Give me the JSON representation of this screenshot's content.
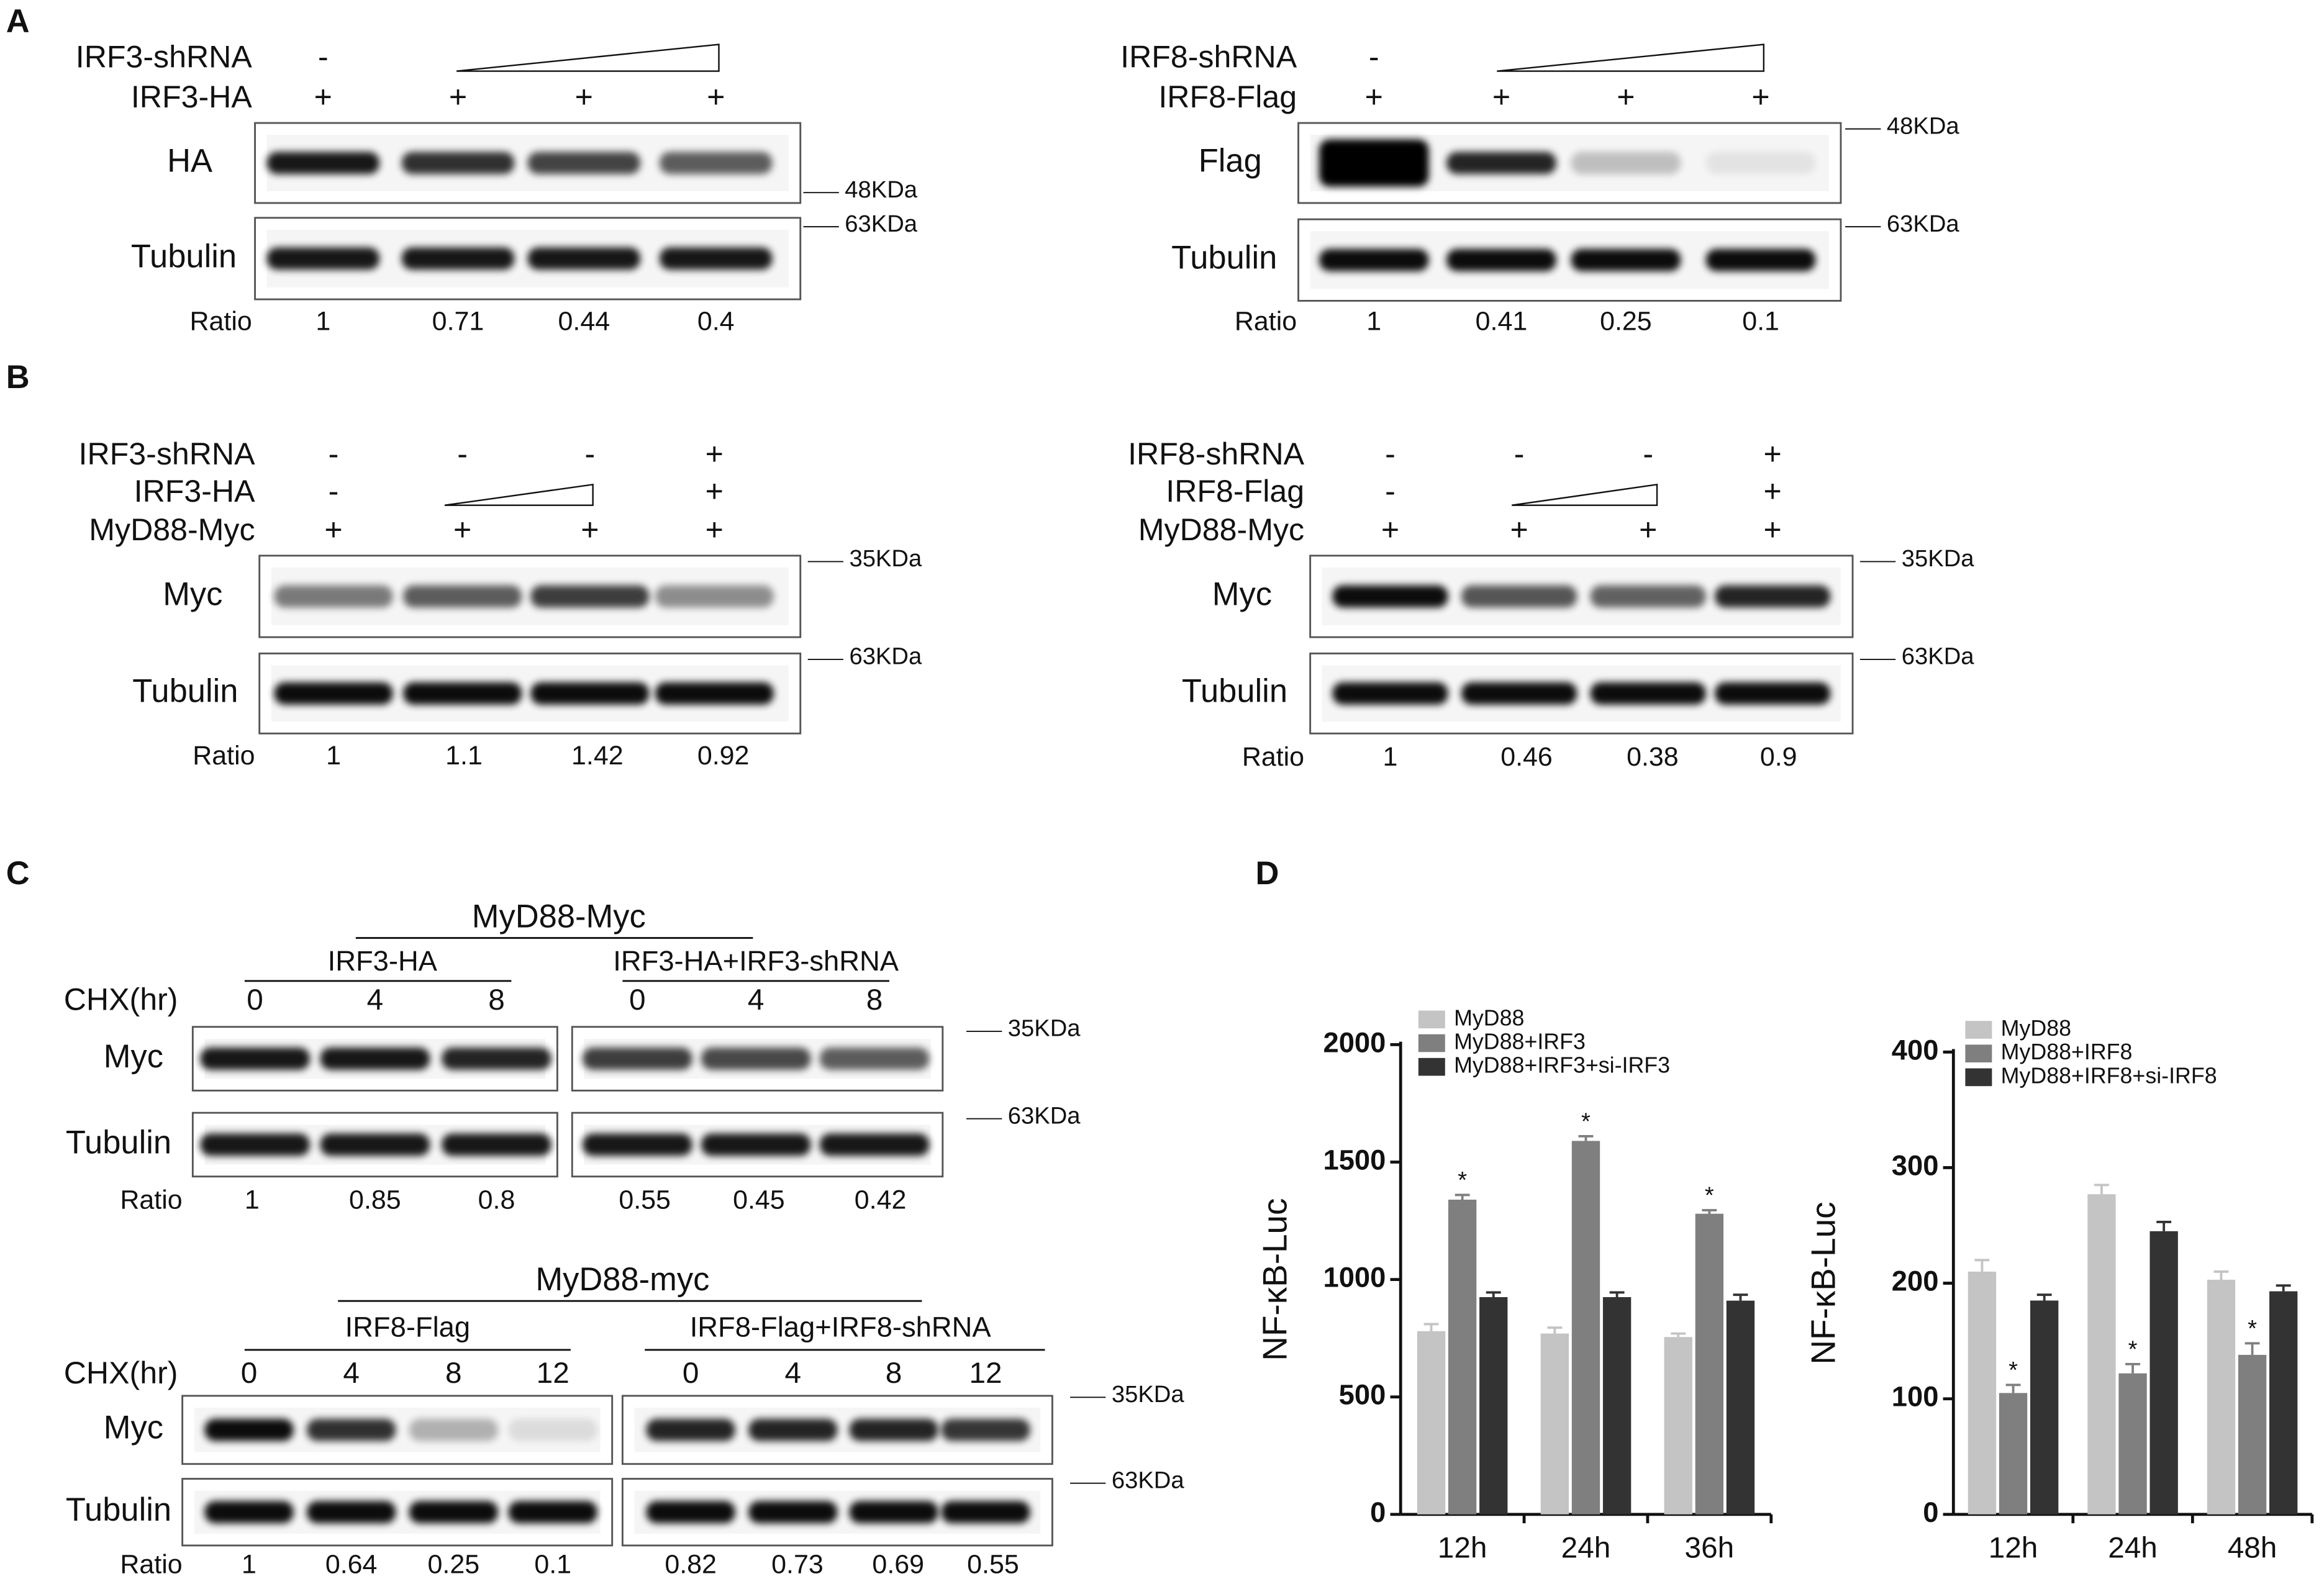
{
  "panel_a": {
    "label": "A",
    "blots": [
      {
        "rows": [
          {
            "label": "IRF3-shRNA",
            "cells": [
              "-"
            ]
          },
          {
            "label": "IRF3-HA",
            "cells": [
              "+",
              "+",
              "+",
              "+"
            ]
          }
        ],
        "gels": [
          {
            "label": "HA",
            "marker": "48KDa"
          },
          {
            "label": "Tubulin",
            "marker": "63KDa"
          }
        ],
        "ratio_label": "Ratio",
        "ratios": [
          "1",
          "0.71",
          "0.44",
          "0.4"
        ]
      },
      {
        "rows": [
          {
            "label": "IRF8-shRNA",
            "cells": [
              "-"
            ]
          },
          {
            "label": "IRF8-Flag",
            "cells": [
              "+",
              "+",
              "+",
              "+"
            ]
          }
        ],
        "gels": [
          {
            "label": "Flag",
            "marker": "48KDa"
          },
          {
            "label": "Tubulin",
            "marker": "63KDa"
          }
        ],
        "ratio_label": "Ratio",
        "ratios": [
          "1",
          "0.41",
          "0.25",
          "0.1"
        ]
      }
    ]
  },
  "panel_b": {
    "label": "B",
    "blots": [
      {
        "rows": [
          {
            "label": "IRF3-shRNA",
            "cells": [
              "-",
              "-",
              "-",
              "+"
            ]
          },
          {
            "label": "IRF3-HA",
            "cells": [
              "-",
              "+"
            ]
          },
          {
            "label": "MyD88-Myc",
            "cells": [
              "+",
              "+",
              "+",
              "+"
            ]
          }
        ],
        "gels": [
          {
            "label": "Myc",
            "marker": "35KDa"
          },
          {
            "label": "Tubulin",
            "marker": "63KDa"
          }
        ],
        "ratio_label": "Ratio",
        "ratios": [
          "1",
          "1.1",
          "1.42",
          "0.92"
        ]
      },
      {
        "rows": [
          {
            "label": "IRF8-shRNA",
            "cells": [
              "-",
              "-",
              "-",
              "+"
            ]
          },
          {
            "label": "IRF8-Flag",
            "cells": [
              "-",
              "+"
            ]
          },
          {
            "label": "MyD88-Myc",
            "cells": [
              "+",
              "+",
              "+",
              "+"
            ]
          }
        ],
        "gels": [
          {
            "label": "Myc",
            "marker": "35KDa"
          },
          {
            "label": "Tubulin",
            "marker": "63KDa"
          }
        ],
        "ratio_label": "Ratio",
        "ratios": [
          "1",
          "0.46",
          "0.38",
          "0.9"
        ]
      }
    ]
  },
  "panel_c": {
    "label": "C",
    "experiments": [
      {
        "title": "MyD88-Myc",
        "groups": [
          "IRF3-HA",
          "IRF3-HA+IRF3-shRNA"
        ],
        "time_label": "CHX(hr)",
        "times": [
          "0",
          "4",
          "8",
          "0",
          "4",
          "8"
        ],
        "gels": [
          {
            "label": "Myc",
            "marker": "35KDa"
          },
          {
            "label": "Tubulin",
            "marker": "63KDa"
          }
        ],
        "ratio_label": "Ratio",
        "ratios": [
          "1",
          "0.85",
          "0.8",
          "0.55",
          "0.45",
          "0.42"
        ]
      },
      {
        "title": "MyD88-myc",
        "groups": [
          "IRF8-Flag",
          "IRF8-Flag+IRF8-shRNA"
        ],
        "time_label": "CHX(hr)",
        "times": [
          "0",
          "4",
          "8",
          "12",
          "0",
          "4",
          "8",
          "12"
        ],
        "gels": [
          {
            "label": "Myc",
            "marker": "35KDa"
          },
          {
            "label": "Tubulin",
            "marker": "63KDa"
          }
        ],
        "ratio_label": "Ratio",
        "ratios": [
          "1",
          "0.64",
          "0.25",
          "0.1",
          "0.82",
          "0.73",
          "0.69",
          "0.55"
        ]
      }
    ]
  },
  "panel_d": {
    "label": "D"
  },
  "chart_data": [
    {
      "type": "bar",
      "ylabel": "NF-κB-Luc",
      "categories": [
        "12h",
        "24h",
        "36h"
      ],
      "ylim": [
        0,
        2000
      ],
      "yticks": [
        0,
        500,
        1000,
        1500,
        2000
      ],
      "series": [
        {
          "name": "MyD88",
          "color": "#c4c4c4",
          "values": [
            780,
            770,
            755
          ],
          "errors": [
            30,
            25,
            15
          ]
        },
        {
          "name": "MyD88+IRF3",
          "color": "#7f7f7f",
          "values": [
            1340,
            1590,
            1280
          ],
          "errors": [
            20,
            20,
            15
          ],
          "markers": [
            "*",
            "*",
            "*"
          ]
        },
        {
          "name": "MyD88+IRF3+si-IRF3",
          "color": "#333333",
          "values": [
            925,
            925,
            910
          ],
          "errors": [
            20,
            20,
            25
          ]
        }
      ]
    },
    {
      "type": "bar",
      "ylabel": "NF-κB-Luc",
      "categories": [
        "12h",
        "24h",
        "48h"
      ],
      "ylim": [
        0,
        400
      ],
      "yticks": [
        0,
        100,
        200,
        300,
        400
      ],
      "series": [
        {
          "name": "MyD88",
          "color": "#c4c4c4",
          "values": [
            210,
            277,
            203
          ],
          "errors": [
            10,
            8,
            7
          ]
        },
        {
          "name": "MyD88+IRF8",
          "color": "#7f7f7f",
          "values": [
            105,
            122,
            138
          ],
          "errors": [
            7,
            8,
            10
          ],
          "markers": [
            "*",
            "*",
            "*"
          ]
        },
        {
          "name": "MyD88+IRF8+si-IRF8",
          "color": "#333333",
          "values": [
            185,
            245,
            193
          ],
          "errors": [
            5,
            8,
            5
          ]
        }
      ]
    }
  ]
}
